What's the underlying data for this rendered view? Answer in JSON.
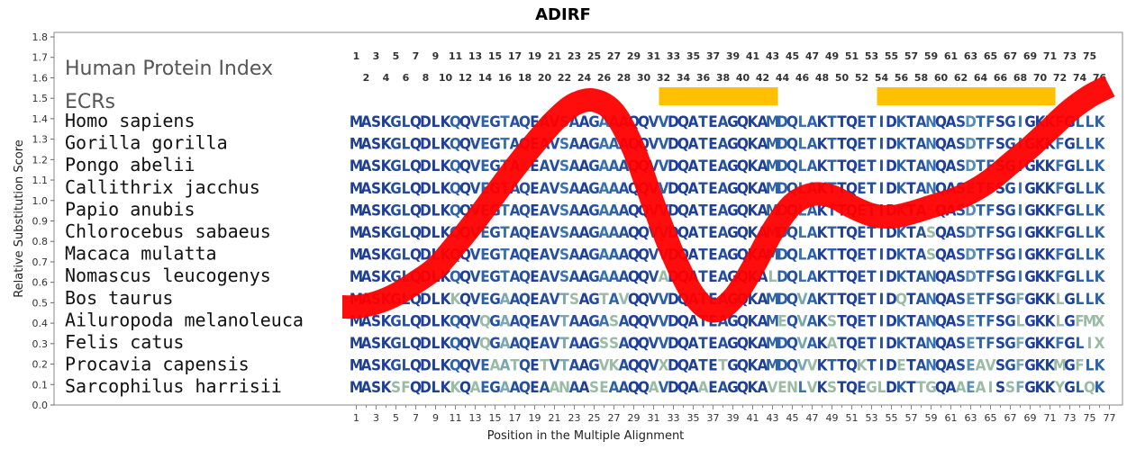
{
  "chart_data": {
    "type": "line",
    "title": "ADIRF",
    "xlabel": "Position in the Multiple Alignment",
    "ylabel": "Relative Substitution Score",
    "ylim": [
      0.0,
      1.8
    ],
    "xlim": [
      1,
      77
    ],
    "y_ticks": [
      "0.0",
      "0.1",
      "0.2",
      "0.3",
      "0.4",
      "0.5",
      "0.6",
      "0.7",
      "0.8",
      "0.9",
      "1.0",
      "1.1",
      "1.2",
      "1.3",
      "1.4",
      "1.5",
      "1.6",
      "1.7",
      "1.8"
    ],
    "x_ticks": [
      "1",
      "3",
      "5",
      "7",
      "9",
      "11",
      "13",
      "15",
      "17",
      "19",
      "21",
      "23",
      "25",
      "27",
      "29",
      "31",
      "33",
      "35",
      "37",
      "39",
      "41",
      "43",
      "45",
      "47",
      "49",
      "51",
      "53",
      "55",
      "57",
      "59",
      "61",
      "63",
      "65",
      "67",
      "69",
      "71",
      "73",
      "75",
      "77"
    ],
    "positions_odd": [
      "1",
      "3",
      "5",
      "7",
      "9",
      "11",
      "13",
      "15",
      "17",
      "19",
      "21",
      "23",
      "25",
      "27",
      "29",
      "31",
      "33",
      "35",
      "37",
      "39",
      "41",
      "43",
      "45",
      "47",
      "49",
      "51",
      "53",
      "55",
      "57",
      "59",
      "61",
      "63",
      "65",
      "67",
      "69",
      "71",
      "73",
      "75"
    ],
    "positions_even": [
      "2",
      "4",
      "6",
      "8",
      "10",
      "12",
      "14",
      "16",
      "18",
      "20",
      "22",
      "24",
      "26",
      "28",
      "30",
      "32",
      "34",
      "36",
      "38",
      "40",
      "42",
      "44",
      "46",
      "48",
      "50",
      "52",
      "54",
      "56",
      "58",
      "60",
      "62",
      "64",
      "66",
      "68",
      "70",
      "72",
      "74",
      "76"
    ],
    "header_label": "Human Protein Index",
    "ecr_label": "ECRs",
    "ecrs": [
      [
        32,
        44
      ],
      [
        54,
        72
      ]
    ],
    "ecr_color": "#ffc000",
    "curve_color": "#ff0000",
    "grid": false,
    "series": [
      {
        "x": [
          1,
          3,
          5,
          7,
          9,
          11,
          13,
          15,
          17,
          19,
          21,
          23,
          25,
          27,
          29,
          31,
          33,
          35,
          37,
          39,
          41,
          43,
          45,
          47,
          49,
          51,
          53,
          55,
          57,
          59,
          61,
          63,
          65,
          67,
          69,
          71,
          73,
          75,
          77
        ],
        "values": [
          0.48,
          0.5,
          0.54,
          0.6,
          0.67,
          0.78,
          0.9,
          1.03,
          1.16,
          1.28,
          1.39,
          1.47,
          1.49,
          1.43,
          1.25,
          0.98,
          0.73,
          0.54,
          0.46,
          0.52,
          0.67,
          0.85,
          0.98,
          1.03,
          1.02,
          0.97,
          0.93,
          0.92,
          0.94,
          0.97,
          1.0,
          1.04,
          1.1,
          1.18,
          1.26,
          1.35,
          1.44,
          1.51,
          1.56
        ]
      }
    ],
    "species": [
      {
        "name": "Homo sapiens",
        "seq": "MASKGLQDLKQQVEGTAQEAVSAAGAAAQQVVDQATEAGQKAMDQLAKTTQETIDKTANQASDTFSGIGKKFGLLK"
      },
      {
        "name": "Gorilla gorilla",
        "seq": "MASKGLQDLKQQVEGTAQEAVSAAGAAAQQVVDQATEAGQKAMDQLAKTTQETIDKTANQASDTFSGIGKKFGLLK"
      },
      {
        "name": "Pongo abelii",
        "seq": "MASKGLQDLKQQVEGTAKEAVSAAGAAAQQVVDQATEAGQKAMDQLAKTTQETIDKTANQASDTFSGIGKKFGLLK"
      },
      {
        "name": "Callithrix jacchus",
        "seq": "MASKGLQDLKQQVEGTAQEAVSAAGAAAQQVVDQATEAGQKAMDQLAKTTQETIDKTANQASETFSGIGKKFGLLK"
      },
      {
        "name": "Papio anubis",
        "seq": "MASKGLQDLKQQVEGTAQEAVSAAGAAAQQVVDQATEAGQKAMDQLAKTTQETIDKTASQASDTFSGIGKKFGLLK"
      },
      {
        "name": "Chlorocebus sabaeus",
        "seq": "MASKGLQDLKQQVEGTAQEAVSAAGAAAQQVVDQATEAGQKAMDQLAKTTQETIDKTASQASDTFSGIGKKFGLLK"
      },
      {
        "name": "Macaca mulatta",
        "seq": "MASKGLQDLKQQVEGTAQEAVSAAGAAAQQVVDQATEAGQKAMDQLAKTTQETIDKTASQASDTFSGIGKKFGLLK"
      },
      {
        "name": "Nomascus leucogenys",
        "seq": "MASKGLQDLKQQVEGTAQEAVSAAGAAAQQVADQATEAGQKALDQLAKTTQETIDKTANQASDTFSGIGKKFGLLK"
      },
      {
        "name": "Bos taurus",
        "seq": "MASKGLQDLKKQVEGAAQEAVTSAGTAVQQVVDQATEAGQKAMDQVAKTTQETIDQTANQASETFSGFGKKLGLLK"
      },
      {
        "name": "Ailuropoda melanoleuca",
        "seq": "MASKGLQDLKQQVQGAAQEAVTAAGASAQQVVDQATEAGQKAMEQVAKSTQETIDKTANQASETFSGLGKKLGFMX"
      },
      {
        "name": "Felis catus",
        "seq": "MASKGLQDLKQQVQGAAQEAVTAAGSSAQQVVDQATEAGQKAMDQVAKATQETIDKTANQASETFSGFGKKFGLIX"
      },
      {
        "name": "Procavia capensis",
        "seq": "MASKGLQDLKQQVEAATQETVTAAGVKAQQVXDQATETGQKAMDQVVKTTQKTIDETANQASEAVSGFGKKMGFLK"
      },
      {
        "name": "Sarcophilus harrisii",
        "seq": "MASKSFQDLKKQAEGAAQEAANAASEAAQQAVDQAAEAGQKAVENLVKSTQEGLDKTTGQAAEAISSFGKKYGLQK"
      }
    ]
  }
}
